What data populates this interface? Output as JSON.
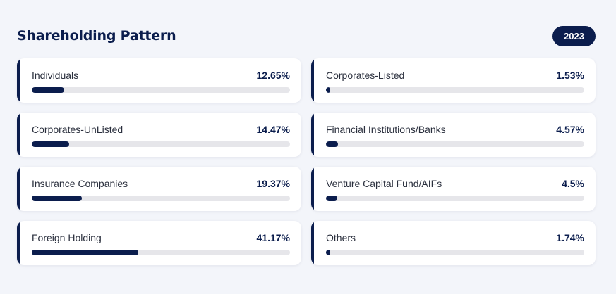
{
  "header": {
    "title": "Shareholding Pattern",
    "year": "2023"
  },
  "colors": {
    "accent": "#0b1d4d",
    "track": "#e6e6ea",
    "background": "#f3f5fa"
  },
  "holdings": [
    {
      "label": "Individuals",
      "value": "12.65%",
      "percent": 12.65
    },
    {
      "label": "Corporates-Listed",
      "value": "1.53%",
      "percent": 1.53
    },
    {
      "label": "Corporates-UnListed",
      "value": "14.47%",
      "percent": 14.47
    },
    {
      "label": "Financial Institutions/Banks",
      "value": "4.57%",
      "percent": 4.57
    },
    {
      "label": "Insurance Companies",
      "value": "19.37%",
      "percent": 19.37
    },
    {
      "label": "Venture Capital Fund/AIFs",
      "value": "4.5%",
      "percent": 4.5
    },
    {
      "label": "Foreign Holding",
      "value": "41.17%",
      "percent": 41.17
    },
    {
      "label": "Others",
      "value": "1.74%",
      "percent": 1.74
    }
  ]
}
